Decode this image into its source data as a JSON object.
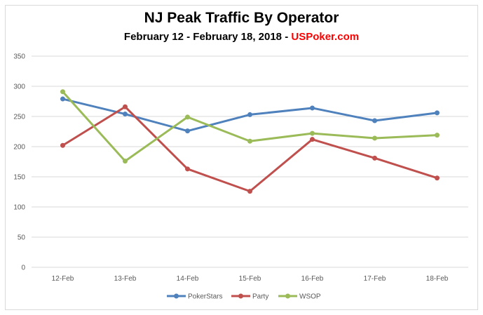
{
  "chart_data": {
    "type": "line",
    "title": "NJ Peak Traffic By Operator",
    "subtitle": "February 12 - February 18, 2018 - ",
    "subtitle_brand": "USPoker.com",
    "brand_color": "#ff0000",
    "categories": [
      "12-Feb",
      "13-Feb",
      "14-Feb",
      "15-Feb",
      "16-Feb",
      "17-Feb",
      "18-Feb"
    ],
    "ylim": [
      0,
      350
    ],
    "yticks": [
      0,
      50,
      100,
      150,
      200,
      250,
      300,
      350
    ],
    "grid": true,
    "legend": "bottom",
    "series": [
      {
        "name": "PokerStars",
        "color": "#4f81bd",
        "values": [
          279,
          254,
          226,
          253,
          264,
          243,
          256
        ]
      },
      {
        "name": "Party",
        "color": "#c0504d",
        "values": [
          202,
          266,
          163,
          126,
          212,
          181,
          148
        ]
      },
      {
        "name": "WSOP",
        "color": "#9bbb59",
        "values": [
          291,
          176,
          249,
          209,
          222,
          214,
          219
        ]
      }
    ]
  }
}
